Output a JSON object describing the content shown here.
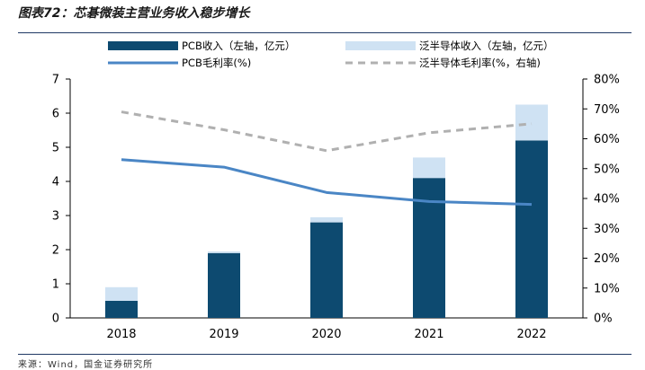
{
  "figure": {
    "title": "图表72：芯碁微装主营业务收入稳步增长",
    "source": "来源：Wind，国金证券研究所"
  },
  "colors": {
    "pcb_bar": "#0d4a70",
    "semi_bar": "#cfe2f3",
    "pcb_line": "#4a86c5",
    "semi_line": "#b0b0b0"
  },
  "chart_data": {
    "type": "bar",
    "categories": [
      "2018",
      "2019",
      "2020",
      "2021",
      "2022"
    ],
    "series": [
      {
        "name": "PCB收入（左轴，亿元）",
        "type": "bar",
        "axis": "left",
        "stack": "revenue",
        "values": [
          0.5,
          1.9,
          2.8,
          4.1,
          5.2
        ]
      },
      {
        "name": "泛半导体收入（左轴，亿元）",
        "type": "bar",
        "axis": "left",
        "stack": "revenue",
        "values": [
          0.4,
          0.05,
          0.15,
          0.6,
          1.05
        ]
      },
      {
        "name": "PCB毛利率(%)",
        "type": "line",
        "axis": "right",
        "style": "solid",
        "values": [
          53,
          50.5,
          42,
          39,
          38
        ]
      },
      {
        "name": "泛半导体毛利率(%，右轴)",
        "type": "line",
        "axis": "right",
        "style": "dashed",
        "values": [
          69,
          63,
          56,
          62,
          65
        ]
      }
    ],
    "y_left": {
      "min": 0,
      "max": 7,
      "ticks": [
        "0",
        "1",
        "2",
        "3",
        "4",
        "5",
        "6",
        "7"
      ]
    },
    "y_right": {
      "min": 0,
      "max": 80,
      "ticks": [
        "0%",
        "10%",
        "20%",
        "30%",
        "40%",
        "50%",
        "60%",
        "70%",
        "80%"
      ]
    },
    "legend": {
      "pcb_rev": "PCB收入（左轴，亿元）",
      "semi_rev": "泛半导体收入（左轴，亿元）",
      "pcb_margin": "PCB毛利率(%)",
      "semi_margin": "泛半导体毛利率(%，右轴)",
      "position": "top"
    },
    "grid": false
  }
}
